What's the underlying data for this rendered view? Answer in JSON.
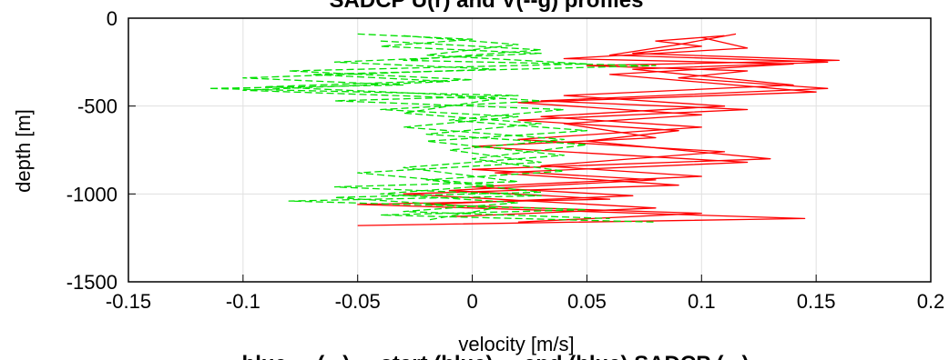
{
  "chart_data": {
    "type": "line",
    "title": "SADCP U(r) and V(--g) profiles",
    "xlabel": "velocity [m/s]",
    "ylabel": "depth [m]",
    "xlim": [
      -0.15,
      0.2
    ],
    "ylim": [
      -1500,
      0
    ],
    "xticks": [
      "-0.15",
      "-0.1",
      "-0.05",
      "0",
      "0.05",
      "0.1",
      "0.15",
      "0.2"
    ],
    "yticks": [
      "0",
      "-500",
      "-1000",
      "-1500"
    ],
    "grid": true,
    "footer_text": "...blue ... (...) ... start (blue) ... end (blue) SADCP (...)",
    "series": [
      {
        "color": "#ff0000",
        "style": "solid",
        "points": [
          [
            0.11,
            -100
          ],
          [
            0.08,
            -130
          ],
          [
            0.1,
            -160
          ],
          [
            0.07,
            -200
          ],
          [
            0.16,
            -240
          ],
          [
            0.05,
            -270
          ],
          [
            0.12,
            -300
          ],
          [
            0.09,
            -340
          ],
          [
            0.155,
            -400
          ],
          [
            0.03,
            -470
          ],
          [
            0.12,
            -520
          ],
          [
            0.02,
            -580
          ],
          [
            0.09,
            -640
          ],
          [
            0.05,
            -700
          ],
          [
            0.13,
            -800
          ],
          [
            0.0,
            -860
          ],
          [
            0.08,
            -920
          ],
          [
            -0.01,
            -980
          ],
          [
            0.06,
            -1030
          ],
          [
            -0.05,
            -1060
          ],
          [
            0.05,
            -1100
          ],
          [
            0.145,
            -1140
          ],
          [
            -0.05,
            -1180
          ]
        ]
      },
      {
        "color": "#ff0000",
        "style": "solid",
        "points": [
          [
            0.115,
            -90
          ],
          [
            0.09,
            -150
          ],
          [
            0.06,
            -210
          ],
          [
            0.155,
            -250
          ],
          [
            0.07,
            -290
          ],
          [
            0.14,
            -380
          ],
          [
            0.04,
            -440
          ],
          [
            0.11,
            -500
          ],
          [
            0.03,
            -560
          ],
          [
            0.1,
            -620
          ],
          [
            0.02,
            -690
          ],
          [
            0.11,
            -760
          ],
          [
            0.03,
            -840
          ],
          [
            0.1,
            -900
          ],
          [
            0.0,
            -960
          ],
          [
            0.07,
            -1010
          ],
          [
            -0.02,
            -1060
          ],
          [
            0.1,
            -1110
          ],
          [
            0.02,
            -1160
          ]
        ]
      },
      {
        "color": "#ff0000",
        "style": "solid",
        "points": [
          [
            0.1,
            -110
          ],
          [
            0.12,
            -170
          ],
          [
            0.04,
            -230
          ],
          [
            0.14,
            -260
          ],
          [
            0.06,
            -320
          ],
          [
            0.15,
            -420
          ],
          [
            0.02,
            -480
          ],
          [
            0.1,
            -550
          ],
          [
            0.04,
            -600
          ],
          [
            0.08,
            -680
          ],
          [
            0.0,
            -730
          ],
          [
            0.12,
            -820
          ],
          [
            0.01,
            -880
          ],
          [
            0.09,
            -950
          ],
          [
            -0.03,
            -1000
          ],
          [
            0.08,
            -1080
          ],
          [
            -0.01,
            -1130
          ]
        ]
      },
      {
        "color": "#00e000",
        "style": "dashed",
        "points": [
          [
            -0.05,
            -90
          ],
          [
            0.0,
            -120
          ],
          [
            -0.04,
            -160
          ],
          [
            0.03,
            -200
          ],
          [
            -0.06,
            -250
          ],
          [
            0.01,
            -290
          ],
          [
            -0.1,
            -340
          ],
          [
            -0.03,
            -380
          ],
          [
            -0.115,
            -400
          ],
          [
            0.02,
            -440
          ],
          [
            -0.06,
            -470
          ],
          [
            0.04,
            -520
          ],
          [
            -0.01,
            -580
          ],
          [
            0.05,
            -640
          ],
          [
            -0.02,
            -700
          ],
          [
            0.04,
            -780
          ],
          [
            -0.03,
            -850
          ],
          [
            0.02,
            -930
          ],
          [
            -0.06,
            -960
          ],
          [
            0.03,
            -1010
          ],
          [
            -0.08,
            -1040
          ],
          [
            0.05,
            -1090
          ],
          [
            -0.04,
            -1120
          ],
          [
            0.08,
            -1160
          ]
        ]
      },
      {
        "color": "#00e000",
        "style": "dashed",
        "points": [
          [
            -0.03,
            -100
          ],
          [
            0.02,
            -150
          ],
          [
            -0.02,
            -210
          ],
          [
            0.05,
            -260
          ],
          [
            -0.08,
            -300
          ],
          [
            0.0,
            -350
          ],
          [
            -0.09,
            -390
          ],
          [
            -0.02,
            -430
          ],
          [
            0.03,
            -470
          ],
          [
            -0.04,
            -520
          ],
          [
            0.02,
            -560
          ],
          [
            -0.03,
            -620
          ],
          [
            0.04,
            -690
          ],
          [
            -0.01,
            -750
          ],
          [
            0.03,
            -820
          ],
          [
            -0.05,
            -880
          ],
          [
            0.01,
            -950
          ],
          [
            -0.04,
            -1000
          ],
          [
            0.02,
            -1050
          ],
          [
            -0.03,
            -1100
          ],
          [
            0.06,
            -1140
          ]
        ]
      },
      {
        "color": "#00e000",
        "style": "dashed",
        "points": [
          [
            -0.04,
            -130
          ],
          [
            0.03,
            -180
          ],
          [
            -0.03,
            -240
          ],
          [
            0.08,
            -270
          ],
          [
            -0.07,
            -320
          ],
          [
            -0.01,
            -360
          ],
          [
            -0.1,
            -410
          ],
          [
            0.01,
            -460
          ],
          [
            -0.03,
            -540
          ],
          [
            0.03,
            -600
          ],
          [
            -0.02,
            -660
          ],
          [
            0.05,
            -720
          ],
          [
            0.0,
            -800
          ],
          [
            0.04,
            -870
          ],
          [
            -0.02,
            -920
          ],
          [
            0.03,
            -990
          ],
          [
            -0.06,
            -1020
          ],
          [
            0.01,
            -1080
          ],
          [
            -0.02,
            -1150
          ]
        ]
      }
    ]
  }
}
